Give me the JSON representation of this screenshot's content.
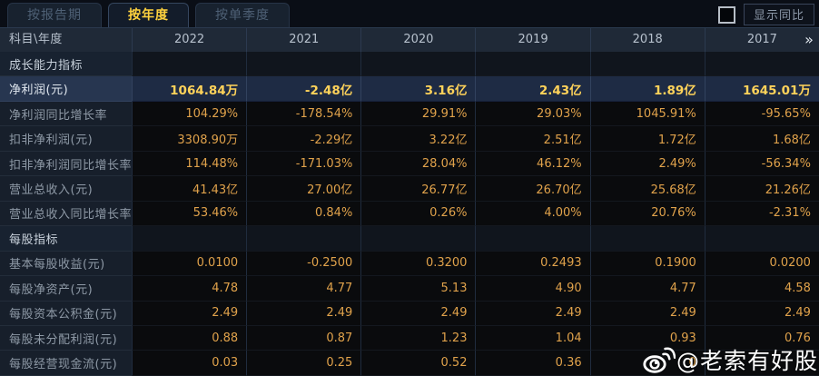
{
  "tabs": [
    {
      "label": "按报告期",
      "active": false
    },
    {
      "label": "按年度",
      "active": true
    },
    {
      "label": "按单季度",
      "active": false
    }
  ],
  "controls": {
    "show_yoy_label": "显示同比",
    "checkbox_checked": false
  },
  "table": {
    "corner_label": "科目\\年度",
    "years": [
      "2022",
      "2021",
      "2020",
      "2019",
      "2018",
      "2017"
    ],
    "rows": [
      {
        "label": "成长能力指标",
        "type": "section",
        "values": [
          "",
          "",
          "",
          "",
          "",
          ""
        ]
      },
      {
        "label": "净利润(元)",
        "type": "highlight",
        "values": [
          "1064.84万",
          "-2.48亿",
          "3.16亿",
          "2.43亿",
          "1.89亿",
          "1645.01万"
        ]
      },
      {
        "label": "净利润同比增长率",
        "type": "data",
        "values": [
          "104.29%",
          "-178.54%",
          "29.91%",
          "29.03%",
          "1045.91%",
          "-95.65%"
        ]
      },
      {
        "label": "扣非净利润(元)",
        "type": "data",
        "values": [
          "3308.90万",
          "-2.29亿",
          "3.22亿",
          "2.51亿",
          "1.72亿",
          "1.68亿"
        ]
      },
      {
        "label": "扣非净利润同比增长率",
        "type": "data",
        "values": [
          "114.48%",
          "-171.03%",
          "28.04%",
          "46.12%",
          "2.49%",
          "-56.34%"
        ]
      },
      {
        "label": "营业总收入(元)",
        "type": "data",
        "values": [
          "41.43亿",
          "27.00亿",
          "26.77亿",
          "26.70亿",
          "25.68亿",
          "21.26亿"
        ]
      },
      {
        "label": "营业总收入同比增长率",
        "type": "data",
        "values": [
          "53.46%",
          "0.84%",
          "0.26%",
          "4.00%",
          "20.76%",
          "-2.31%"
        ]
      },
      {
        "label": "每股指标",
        "type": "section",
        "values": [
          "",
          "",
          "",
          "",
          "",
          ""
        ]
      },
      {
        "label": "基本每股收益(元)",
        "type": "data",
        "values": [
          "0.0100",
          "-0.2500",
          "0.3200",
          "0.2493",
          "0.1900",
          "0.0200"
        ]
      },
      {
        "label": "每股净资产(元)",
        "type": "data",
        "values": [
          "4.78",
          "4.77",
          "5.13",
          "4.90",
          "4.77",
          "4.58"
        ]
      },
      {
        "label": "每股资本公积金(元)",
        "type": "data",
        "values": [
          "2.49",
          "2.49",
          "2.49",
          "2.49",
          "2.49",
          "2.49"
        ]
      },
      {
        "label": "每股未分配利润(元)",
        "type": "data",
        "values": [
          "0.88",
          "0.87",
          "1.23",
          "1.04",
          "0.93",
          "0.76"
        ]
      },
      {
        "label": "每股经营现金流(元)",
        "type": "data",
        "values": [
          "0.03",
          "0.25",
          "0.52",
          "0.36",
          "0",
          ""
        ]
      }
    ]
  },
  "icons": {
    "more_columns": "»"
  },
  "watermark": {
    "text": "@老索有好股"
  },
  "colors": {
    "tab_active_text": "#ffd23e",
    "value_orange": "#e0a24b",
    "highlight_value_gold": "#ffd35a",
    "highlight_row_bg": "#1e2b44",
    "header_bg": "#1f2937",
    "label_col_bg": "#171f2b",
    "cell_bg": "#0a0b0d",
    "watermark": "#ffffff"
  }
}
